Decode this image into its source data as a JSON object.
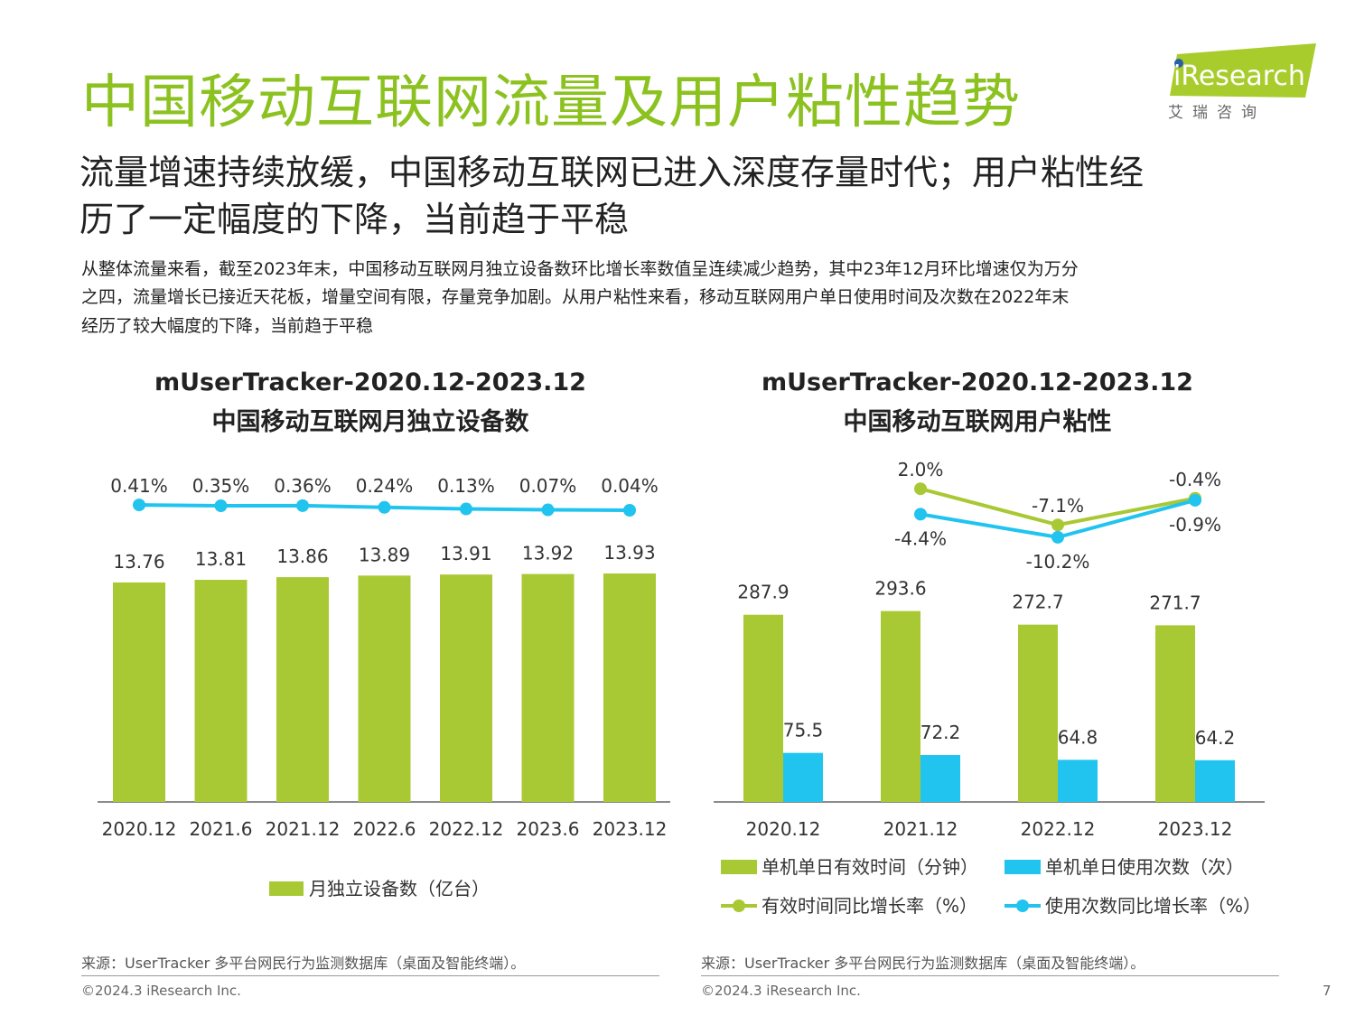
{
  "header": {
    "title": "中国移动互联网流量及用户粘性趋势",
    "subtitle_lines": [
      "流量增速持续放缓，中国移动互联网已进入深度存量时代；用户粘性经",
      "历了一定幅度的下降，当前趋于平稳"
    ],
    "body_lines": [
      "从整体流量来看，截至2023年末，中国移动互联网月独立设备数环比增长率数值呈连续减少趋势，其中23年12月环比增速仅为万分",
      "之四，流量增长已接近天花板，增量空间有限，存量竞争加剧。从用户粘性来看，移动互联网用户单日使用时间及次数在2022年末",
      "经历了较大幅度的下降，当前趋于平稳"
    ]
  },
  "logo": {
    "text": "iResearch",
    "subtext": "艾 瑞 咨 询",
    "color": "#a8cc2c"
  },
  "colors": {
    "green": "#a9c934",
    "blue": "#21c4ef",
    "title_green": "#8cc220"
  },
  "chart_data": [
    {
      "type": "bar+line",
      "title_lines": [
        "mUserTracker-2020.12-2023.12",
        "中国移动互联网月独立设备数"
      ],
      "categories": [
        "2020.12",
        "2021.6",
        "2021.12",
        "2022.6",
        "2022.12",
        "2023.6",
        "2023.12"
      ],
      "series": [
        {
          "name": "月独立设备数（亿台）",
          "kind": "bar",
          "color": "#a9c934",
          "values": [
            13.76,
            13.81,
            13.86,
            13.89,
            13.91,
            13.92,
            13.93
          ],
          "labels": [
            "13.76",
            "13.81",
            "13.86",
            "13.89",
            "13.91",
            "13.92",
            "13.93"
          ]
        },
        {
          "kind": "line",
          "color": "#21c4ef",
          "values": [
            0.41,
            0.35,
            0.36,
            0.24,
            0.13,
            0.07,
            0.04
          ],
          "labels": [
            "0.41%",
            "0.35%",
            "0.36%",
            "0.24%",
            "0.13%",
            "0.07%",
            "0.04%"
          ]
        }
      ],
      "bar_ylim": [
        9.6,
        14.0
      ],
      "legend": "bottom",
      "grid": false,
      "source": "来源：UserTracker 多平台网民行为监测数据库（桌面及智能终端）。",
      "copyright": "©2024.3 iResearch Inc."
    },
    {
      "type": "bar+line",
      "title_lines": [
        "mUserTracker-2020.12-2023.12",
        "中国移动互联网用户粘性"
      ],
      "categories": [
        "2020.12",
        "2021.12",
        "2022.12",
        "2023.12"
      ],
      "series": [
        {
          "name": "单机单日有效时间（分钟）",
          "kind": "bar",
          "color": "#a9c934",
          "values": [
            287.9,
            293.6,
            272.7,
            271.7
          ],
          "labels": [
            "287.9",
            "293.6",
            "272.7",
            "271.7"
          ]
        },
        {
          "name": "单机单日使用次数（次）",
          "kind": "bar",
          "color": "#21c4ef",
          "values": [
            75.5,
            72.2,
            64.8,
            64.2
          ],
          "labels": [
            "75.5",
            "72.2",
            "64.8",
            "64.2"
          ]
        },
        {
          "name": "有效时间同比增长率（%）",
          "kind": "line",
          "color": "#a9c934",
          "values": [
            null,
            2.0,
            -7.1,
            -0.4
          ],
          "labels": [
            null,
            "2.0%",
            "-7.1%",
            "-0.4%"
          ]
        },
        {
          "name": "使用次数同比增长率（%）",
          "kind": "line",
          "color": "#21c4ef",
          "values": [
            null,
            -4.4,
            -10.2,
            -0.9
          ],
          "labels": [
            null,
            "-4.4%",
            "-10.2%",
            "-0.9%"
          ]
        }
      ],
      "bar_ylim": [
        0,
        300
      ],
      "legend": "bottom",
      "grid": false,
      "source": "来源：UserTracker 多平台网民行为监测数据库（桌面及智能终端）。",
      "copyright": "©2024.3 iResearch Inc."
    }
  ],
  "footer": {
    "page_number": "7"
  }
}
